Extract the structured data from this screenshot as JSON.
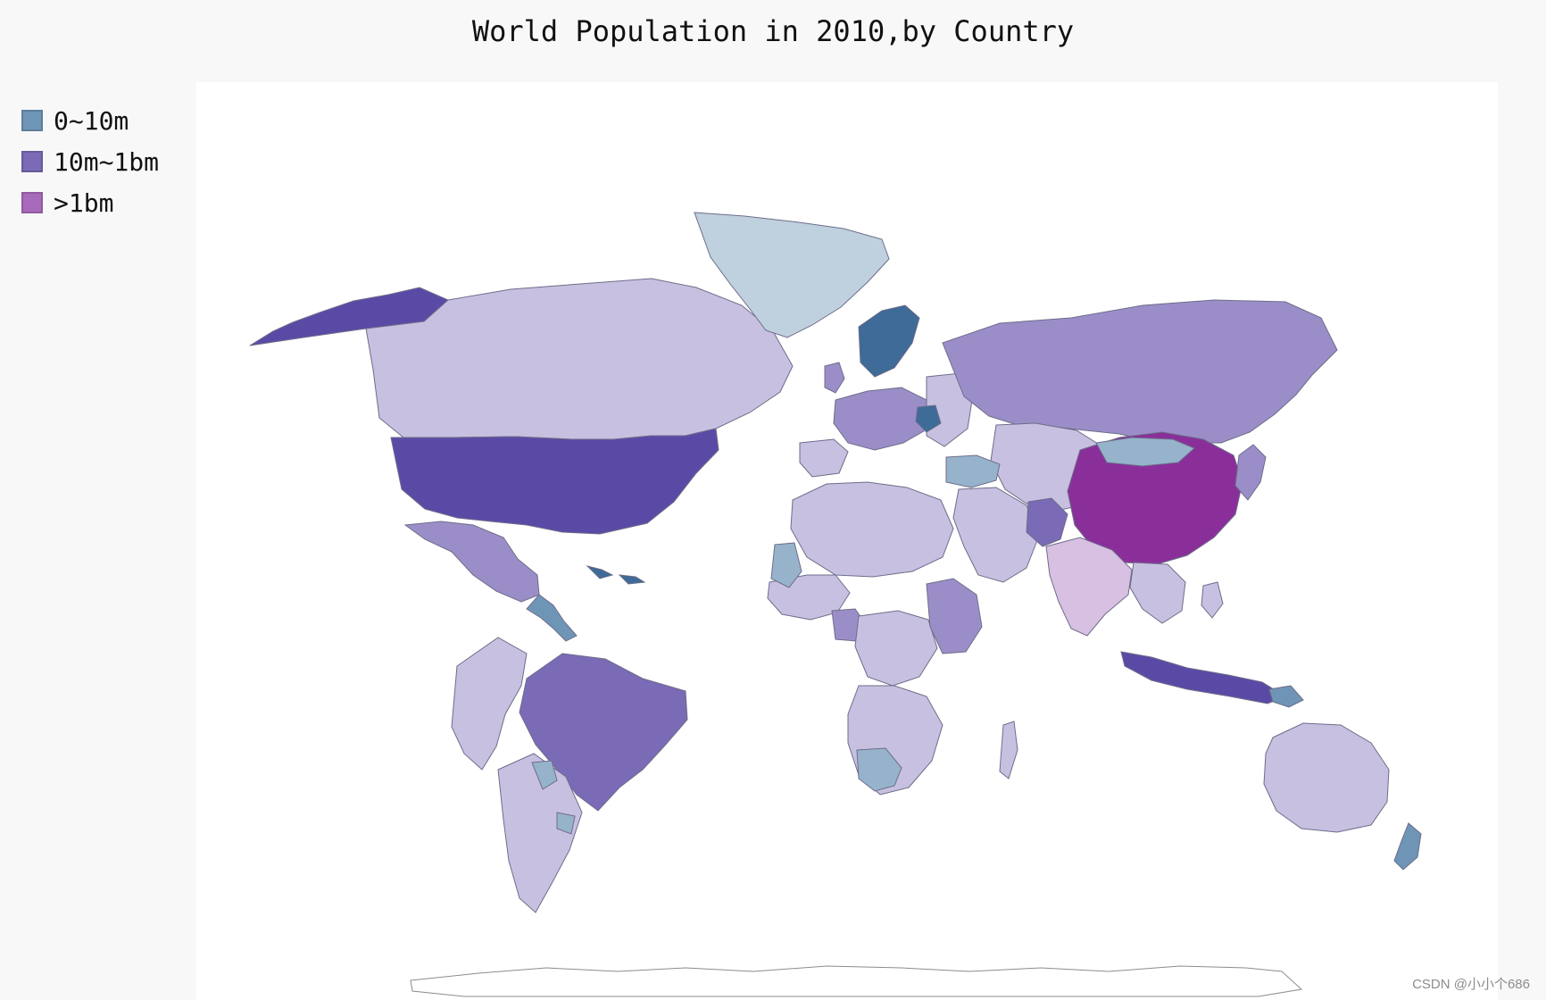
{
  "chart": {
    "title": "World Population in 2010,by Country"
  },
  "legend": {
    "items": [
      {
        "label": "0~10m",
        "color": "#6f95b6"
      },
      {
        "label": "10m~1bm",
        "color": "#7b6ab5"
      },
      {
        "label": ">1bm",
        "color": "#a86bbb"
      }
    ]
  },
  "watermark": "CSDN @小小个686",
  "palette": {
    "small_light": "#bfd0de",
    "small_mid": "#96b3cb",
    "small_dark": "#3e6b98",
    "mid_light": "#c8c0e1",
    "mid_mid": "#9b8ec8",
    "mid_dark": "#5b4aa5",
    "large": "#8a2f9a",
    "india": "#d8c0e2"
  },
  "chart_data": {
    "type": "map",
    "categories": [
      {
        "name": "0~10m",
        "value_range": "0~10m"
      },
      {
        "name": "10m~1bm",
        "value_range": "10m~1bm"
      },
      {
        "name": ">1bm",
        "value_range": ">1bm"
      }
    ]
  }
}
